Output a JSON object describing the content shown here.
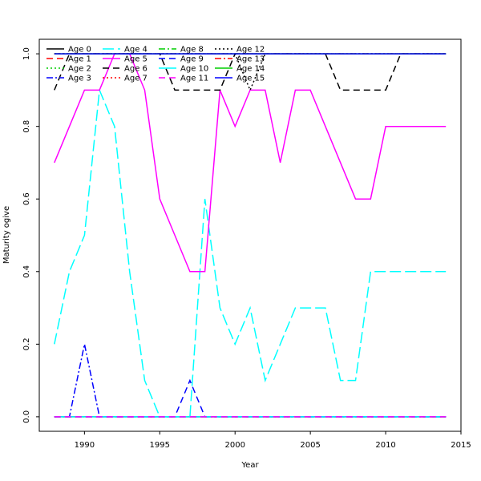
{
  "chart_data": {
    "type": "line",
    "xlabel": "Year",
    "ylabel": "Maturity ogive",
    "xlim": [
      1987,
      2015
    ],
    "ylim": [
      -0.04,
      1.04
    ],
    "xticks": [
      1990,
      1995,
      2000,
      2005,
      2010,
      2015
    ],
    "yticks": [
      0.0,
      0.2,
      0.4,
      0.6,
      0.8,
      1.0
    ],
    "xtick_labels": [
      "1990",
      "1995",
      "2000",
      "2005",
      "2010",
      "2015"
    ],
    "ytick_labels": [
      "0.0",
      "0.2",
      "0.4",
      "0.6",
      "0.8",
      "1.0"
    ],
    "grid": false,
    "legend_position": "top-left",
    "x": [
      1988,
      1989,
      1990,
      1991,
      1992,
      1993,
      1994,
      1995,
      1996,
      1997,
      1998,
      1999,
      2000,
      2001,
      2002,
      2003,
      2004,
      2005,
      2006,
      2007,
      2008,
      2009,
      2010,
      2011,
      2012,
      2013,
      2014
    ],
    "series": [
      {
        "name": "Age 0",
        "color": "#000000",
        "dash": "solid",
        "values": [
          0,
          0,
          0,
          0,
          0,
          0,
          0,
          0,
          0,
          0,
          0,
          0,
          0,
          0,
          0,
          0,
          0,
          0,
          0,
          0,
          0,
          0,
          0,
          0,
          0,
          0,
          0
        ]
      },
      {
        "name": "Age 1",
        "color": "#ff0000",
        "dash": "dashed",
        "values": [
          0,
          0,
          0,
          0,
          0,
          0,
          0,
          0,
          0,
          0,
          0,
          0,
          0,
          0,
          0,
          0,
          0,
          0,
          0,
          0,
          0,
          0,
          0,
          0,
          0,
          0,
          0
        ]
      },
      {
        "name": "Age 2",
        "color": "#00cd00",
        "dash": "dotted",
        "values": [
          0,
          0,
          0,
          0,
          0,
          0,
          0,
          0,
          0,
          0,
          0,
          0,
          0,
          0,
          0,
          0,
          0,
          0,
          0,
          0,
          0,
          0,
          0,
          0,
          0,
          0,
          0
        ]
      },
      {
        "name": "Age 3",
        "color": "#0000ff",
        "dash": "dashdot",
        "values": [
          0,
          0,
          0.2,
          0,
          0,
          0,
          0,
          0,
          0,
          0,
          0,
          0,
          0,
          0,
          0,
          0,
          0,
          0,
          0,
          0,
          0,
          0,
          0,
          0,
          0,
          0,
          0
        ]
      },
      {
        "name": "Age 4",
        "color": "#00ffff",
        "dash": "longdash",
        "values": [
          0.2,
          0.4,
          0.5,
          0.9,
          0.8,
          0.4,
          0.1,
          0,
          0,
          0,
          0.6,
          0.3,
          0.2,
          0.3,
          0.1,
          0.2,
          0.3,
          0.3,
          0.3,
          0.1,
          0.1,
          0.4,
          0.4,
          0.4,
          0.4,
          0.4,
          0.4
        ]
      },
      {
        "name": "Age 5",
        "color": "#ff00ff",
        "dash": "solid",
        "values": [
          0.7,
          0.8,
          0.9,
          0.9,
          1.0,
          1.0,
          0.9,
          0.6,
          0.5,
          0.4,
          0.4,
          0.9,
          0.8,
          0.9,
          0.9,
          0.7,
          0.9,
          0.9,
          0.8,
          0.7,
          0.6,
          0.6,
          0.8,
          0.8,
          0.8,
          0.8,
          0.8
        ]
      },
      {
        "name": "Age 6",
        "color": "#000000",
        "dash": "dashed",
        "values": [
          0.9,
          1.0,
          1.0,
          1.0,
          1.0,
          1.0,
          1.0,
          1.0,
          0.9,
          0.9,
          0.9,
          0.9,
          1.0,
          1.0,
          1.0,
          1.0,
          1.0,
          1.0,
          1.0,
          0.9,
          0.9,
          0.9,
          0.9,
          1.0,
          1.0,
          1.0,
          1.0
        ]
      },
      {
        "name": "Age 7",
        "color": "#ff0000",
        "dash": "dotted",
        "values": [
          1,
          1,
          1,
          1,
          1,
          1,
          1,
          1,
          1,
          1,
          1,
          1,
          1,
          1,
          1,
          1,
          1,
          1,
          1,
          1,
          1,
          1,
          1,
          1,
          1,
          1,
          1
        ]
      },
      {
        "name": "Age 8",
        "color": "#00cd00",
        "dash": "dashdot",
        "values": [
          1,
          1,
          1,
          1,
          1,
          1,
          1,
          1,
          1,
          1,
          1,
          1,
          1,
          1,
          1,
          1,
          1,
          1,
          1,
          1,
          1,
          1,
          1,
          1,
          1,
          1,
          1
        ]
      },
      {
        "name": "Age 9",
        "color": "#0000ff",
        "dash": "dashed",
        "values": [
          0,
          0,
          0,
          0,
          0,
          0,
          0,
          0,
          0,
          0.1,
          0,
          0,
          0,
          0,
          0,
          0,
          0,
          0,
          0,
          0,
          0,
          0,
          0,
          0,
          0,
          0,
          0
        ]
      },
      {
        "name": "Age 10",
        "color": "#00ffff",
        "dash": "solid",
        "values": [
          0,
          0,
          0,
          0,
          0,
          0,
          0,
          0,
          0,
          0,
          0,
          0,
          0,
          0,
          0,
          0,
          0,
          0,
          0,
          0,
          0,
          0,
          0,
          0,
          0,
          0,
          0
        ]
      },
      {
        "name": "Age 11",
        "color": "#ff00ff",
        "dash": "dashed",
        "values": [
          0,
          0,
          0,
          0,
          0,
          0,
          0,
          0,
          0,
          0,
          0,
          0,
          0,
          0,
          0,
          0,
          0,
          0,
          0,
          0,
          0,
          0,
          0,
          0,
          0,
          0,
          0
        ]
      },
      {
        "name": "Age 12",
        "color": "#000000",
        "dash": "dotted",
        "values": [
          1,
          1,
          1,
          1,
          1,
          1,
          1,
          1,
          1,
          1,
          1,
          1,
          1,
          0.9,
          1,
          1,
          1,
          1,
          1,
          1,
          1,
          1,
          1,
          1,
          1,
          1,
          1
        ]
      },
      {
        "name": "Age 13",
        "color": "#ff0000",
        "dash": "dashdot",
        "values": [
          1,
          1,
          1,
          1,
          1,
          1,
          1,
          1,
          1,
          1,
          1,
          1,
          1,
          1,
          1,
          1,
          1,
          1,
          1,
          1,
          1,
          1,
          1,
          1,
          1,
          1,
          1
        ]
      },
      {
        "name": "Age 14",
        "color": "#00cd00",
        "dash": "solid",
        "values": [
          1,
          1,
          1,
          1,
          1,
          1,
          1,
          1,
          1,
          1,
          1,
          1,
          1,
          1,
          1,
          1,
          1,
          1,
          1,
          1,
          1,
          1,
          1,
          1,
          1,
          1,
          1
        ]
      },
      {
        "name": "Age 15",
        "color": "#0000ff",
        "dash": "solid",
        "values": [
          1,
          1,
          1,
          1,
          1,
          1,
          1,
          1,
          1,
          1,
          1,
          1,
          1,
          1,
          1,
          1,
          1,
          1,
          1,
          1,
          1,
          1,
          1,
          1,
          1,
          1,
          1
        ]
      }
    ]
  }
}
